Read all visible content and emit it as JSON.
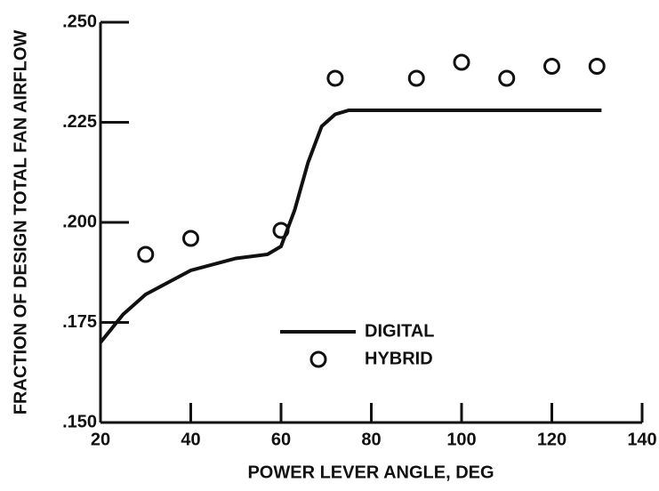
{
  "chart_data": {
    "type": "line",
    "xlabel": "POWER LEVER ANGLE, DEG",
    "ylabel": "FRACTION OF DESIGN TOTAL FAN AIRFLOW",
    "xlim": [
      20,
      140
    ],
    "xticks": [
      20,
      40,
      60,
      80,
      100,
      120,
      140
    ],
    "ylim": [
      0.15,
      0.25
    ],
    "yticks": [
      {
        "value": 0.15,
        "label": ".150"
      },
      {
        "value": 0.175,
        "label": ".175"
      },
      {
        "value": 0.2,
        "label": ".200"
      },
      {
        "value": 0.225,
        "label": ".225"
      },
      {
        "value": 0.25,
        "label": ".250"
      }
    ],
    "series": [
      {
        "name": "DIGITAL",
        "type": "line",
        "color": "#111111",
        "x": [
          20,
          25,
          30,
          40,
          50,
          57,
          60,
          63,
          66,
          69,
          72,
          75,
          131
        ],
        "values": [
          0.17,
          0.177,
          0.182,
          0.188,
          0.191,
          0.192,
          0.194,
          0.203,
          0.215,
          0.224,
          0.227,
          0.228,
          0.228
        ]
      },
      {
        "name": "HYBRID",
        "type": "scatter",
        "color": "#111111",
        "x": [
          30,
          40,
          60,
          72,
          90,
          100,
          110,
          120,
          130
        ],
        "values": [
          0.192,
          0.196,
          0.198,
          0.236,
          0.236,
          0.24,
          0.236,
          0.239,
          0.239
        ]
      }
    ]
  }
}
